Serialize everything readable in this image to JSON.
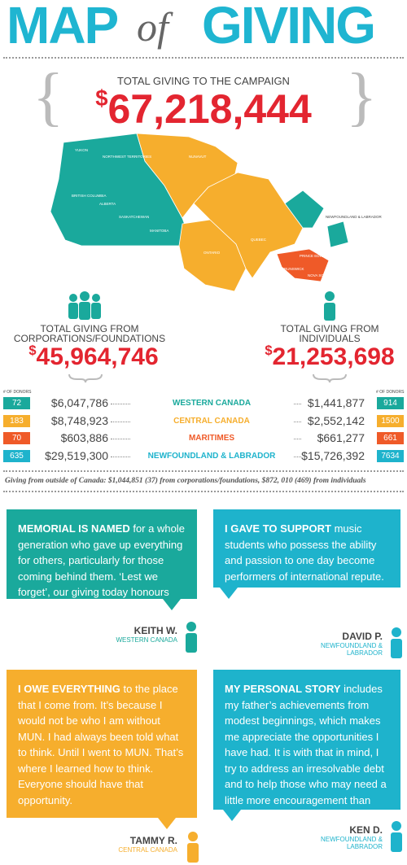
{
  "header": {
    "title_left": "MAP",
    "title_mid": "of",
    "title_right": "GIVING"
  },
  "total": {
    "label": "TOTAL GIVING TO THE CAMPAIGN",
    "amount": "$67,218,444"
  },
  "map": {
    "labels": [
      "YUKON",
      "NORTHWEST TERRITORIES",
      "NUNAVUT",
      "BRITISH COLUMBIA",
      "ALBERTA",
      "SASKATCHEWAN",
      "MANITOBA",
      "ONTARIO",
      "QUEBEC",
      "NEWFOUNDLAND & LABRADOR",
      "PRINCE EDWARD ISLAND",
      "BRUNSWICK",
      "NOVA SCOTIA"
    ]
  },
  "corporations": {
    "label": "TOTAL GIVING FROM CORPORATIONS/FOUNDATIONS",
    "amount": "$45,964,746"
  },
  "individuals": {
    "label": "TOTAL GIVING FROM INDIVIDUALS",
    "amount": "$21,253,698"
  },
  "table": {
    "donors_header_left": "# OF DONORS",
    "donors_header_right": "# OF DONORS",
    "rows": [
      {
        "region": "WESTERN CANADA",
        "corp_donors": "72",
        "corp_amount": "$6,047,786",
        "ind_amount": "$1,441,877",
        "ind_donors": "914",
        "color": "#1aa99c"
      },
      {
        "region": "CENTRAL CANADA",
        "corp_donors": "183",
        "corp_amount": "$8,748,923",
        "ind_amount": "$2,552,142",
        "ind_donors": "1500",
        "color": "#f6ae2d"
      },
      {
        "region": "MARITIMES",
        "corp_donors": "70",
        "corp_amount": "$603,886",
        "ind_amount": "$661,277",
        "ind_donors": "661",
        "color": "#ef5a28"
      },
      {
        "region": "NEWFOUNDLAND & LABRADOR",
        "corp_donors": "635",
        "corp_amount": "$29,519,300",
        "ind_amount": "$15,726,392",
        "ind_donors": "7634",
        "color": "#1eb3cc"
      }
    ]
  },
  "footnote": "Giving from outside of Canada: $1,044,851 (37) from corporations/foundations, $872, 010 (469) from individuals",
  "testimonials": [
    {
      "lead": "MEMORIAL IS NAMED",
      "text": " for a whole generation who gave up everything for others, particularly for those coming behind them. ‘Lest we forget’, our giving today honours that ideal.",
      "name": "KEITH W.",
      "region": "WESTERN CANADA"
    },
    {
      "lead": "I GAVE TO SUPPORT",
      "text": " music students who possess the ability and passion to one day become performers of international repute.",
      "name": "DAVID P.",
      "region": "NEWFOUNDLAND & LABRADOR"
    },
    {
      "lead": "I OWE EVERYTHING",
      "text": " to the place that I come from. It’s because I would not be who I am without MUN. I had  always been told what to think. Until I went to MUN. That’s where I learned how to think. Everyone should have that opportunity.",
      "name": "TAMMY R.",
      "region": "CENTRAL CANADA"
    },
    {
      "lead": "MY PERSONAL STORY",
      "text": " includes my father’s achievements from modest beginnings, which makes me appreciate the opportunities I have had. It is with that in mind, I try to address an irresolvable debt and to help those who may need a little more encouragement than others.",
      "name": "KEN D.",
      "region": "NEWFOUNDLAND & LABRADOR"
    }
  ]
}
